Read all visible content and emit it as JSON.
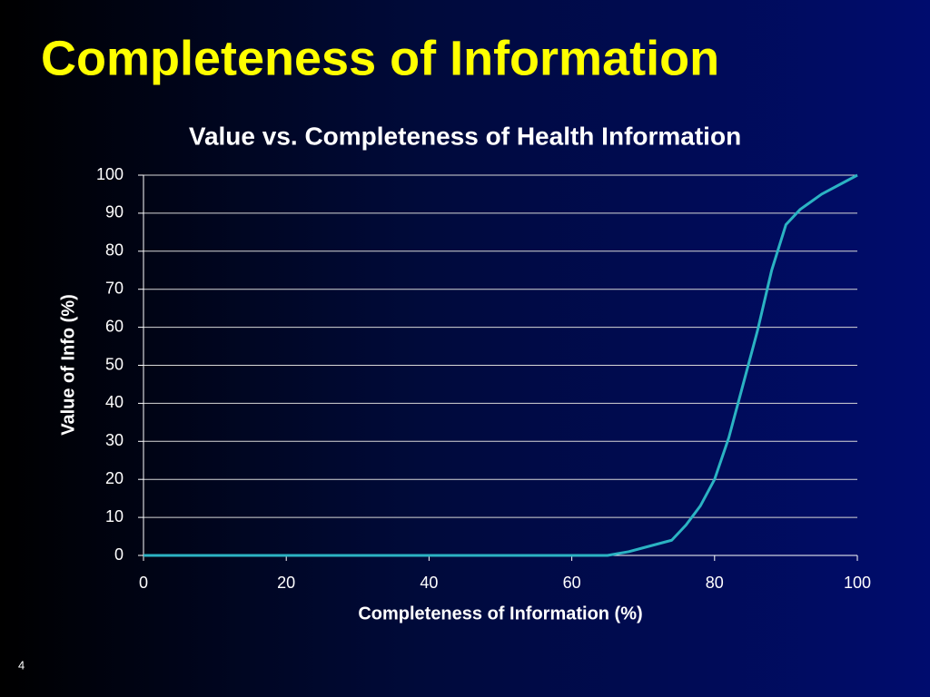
{
  "slide_title": "Completeness of Information",
  "slide_number": "4",
  "chart_data": {
    "type": "line",
    "title": "Value vs. Completeness of Health Information",
    "x_label": "Completeness of Information (%)",
    "y_label": "Value of Info (%)",
    "x": [
      0,
      10,
      20,
      30,
      40,
      50,
      60,
      65,
      68,
      70,
      74,
      76,
      78,
      80,
      82,
      84,
      86,
      88,
      90,
      92,
      95,
      98,
      100
    ],
    "series": [
      {
        "name": "Value of Info",
        "color": "#2bb3c3",
        "values": [
          0,
          0,
          0,
          0,
          0,
          0,
          0,
          0,
          1,
          2,
          4,
          8,
          13,
          20,
          31,
          45,
          59,
          75,
          87,
          91,
          95,
          98,
          100
        ]
      }
    ],
    "xlim": [
      0,
      100
    ],
    "xticks": [
      0,
      20,
      40,
      60,
      80,
      100
    ],
    "ylim": [
      0,
      100
    ],
    "yticks": [
      0,
      10,
      20,
      30,
      40,
      50,
      60,
      70,
      80,
      90,
      100
    ],
    "grid": true
  }
}
